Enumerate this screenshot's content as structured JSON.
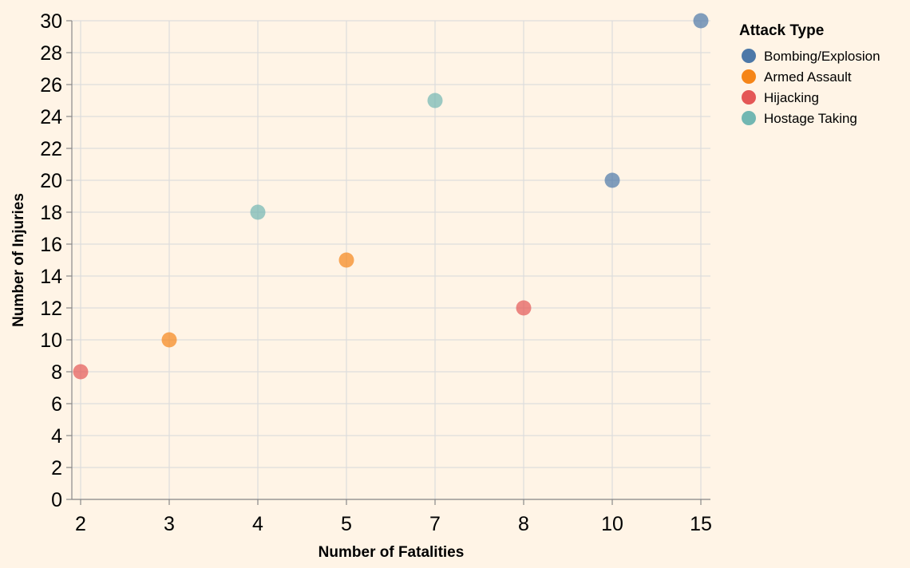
{
  "chart_data": {
    "type": "scatter",
    "xlabel": "Number of Fatalities",
    "ylabel": "Number of Injuries",
    "x_scale": "ordinal",
    "x_categories": [
      "2",
      "3",
      "4",
      "5",
      "7",
      "8",
      "10",
      "15"
    ],
    "y_ticks": [
      0,
      2,
      4,
      6,
      8,
      10,
      12,
      14,
      16,
      18,
      20,
      22,
      24,
      26,
      28,
      30
    ],
    "ylim": [
      0,
      30
    ],
    "grid": true,
    "legend": {
      "title": "Attack Type",
      "placement": "top-right",
      "entries": [
        {
          "name": "Bombing/Explosion",
          "color": "#4c78a8"
        },
        {
          "name": "Armed Assault",
          "color": "#f58518"
        },
        {
          "name": "Hijacking",
          "color": "#e45756"
        },
        {
          "name": "Hostage Taking",
          "color": "#72b7b2"
        }
      ]
    },
    "points": [
      {
        "x": "2",
        "y": 8,
        "series": "Hijacking"
      },
      {
        "x": "3",
        "y": 10,
        "series": "Armed Assault"
      },
      {
        "x": "4",
        "y": 18,
        "series": "Hostage Taking"
      },
      {
        "x": "5",
        "y": 15,
        "series": "Armed Assault"
      },
      {
        "x": "7",
        "y": 25,
        "series": "Hostage Taking"
      },
      {
        "x": "8",
        "y": 12,
        "series": "Hijacking"
      },
      {
        "x": "10",
        "y": 20,
        "series": "Bombing/Explosion"
      },
      {
        "x": "15",
        "y": 30,
        "series": "Bombing/Explosion"
      }
    ]
  }
}
